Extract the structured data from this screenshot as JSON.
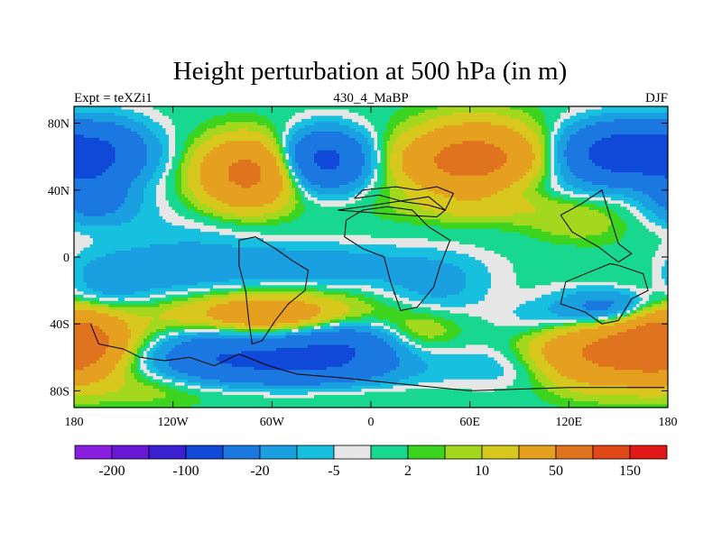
{
  "chart_data": {
    "type": "heatmap",
    "title": "Height perturbation at 500 hPa (in m)",
    "left_label": "Expt = teXZi1",
    "center_label": "430_4_MaBP",
    "right_label": "DJF",
    "x_ticks": [
      "180",
      "120W",
      "60W",
      "0",
      "60E",
      "120E",
      "180"
    ],
    "y_ticks": [
      "80N",
      "40N",
      "0",
      "40S",
      "80S"
    ],
    "x_range": [
      -180,
      180
    ],
    "y_range": [
      -90,
      90
    ],
    "colorbar_labels": [
      "-200",
      "-100",
      "-20",
      "-5",
      "2",
      "10",
      "50",
      "150"
    ],
    "colorbar_colors": [
      "#8a1ee0",
      "#6a18d8",
      "#3a20d0",
      "#1048d8",
      "#1a78e0",
      "#1aa0e0",
      "#18c0e0",
      "#e6e6e6",
      "#18d890",
      "#3cd41e",
      "#a4d81e",
      "#d8c81e",
      "#e4a01e",
      "#e0741e",
      "#e04818",
      "#e01818"
    ],
    "field_levels": [
      -200,
      -150,
      -100,
      -50,
      -20,
      -10,
      -5,
      -2,
      2,
      5,
      10,
      20,
      50,
      100,
      150,
      200
    ]
  }
}
